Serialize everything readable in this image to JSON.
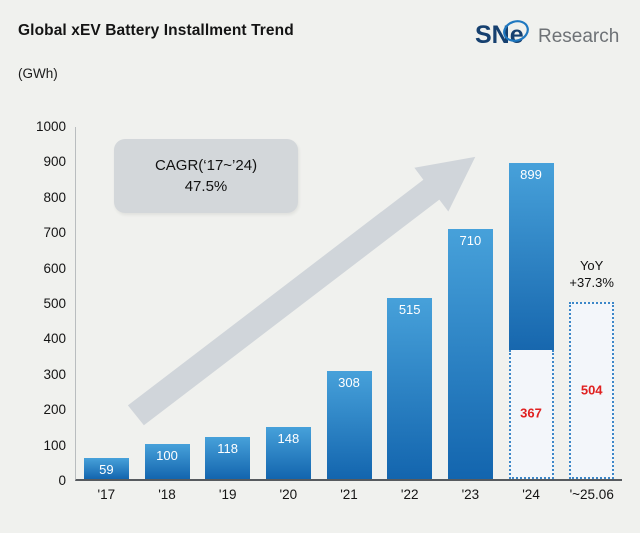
{
  "header": {
    "title": "Global xEV Battery Installment Trend",
    "unit": "(GWh)",
    "logo": {
      "mark": "SNe",
      "text": "Research"
    }
  },
  "annotations": {
    "cagr_line1": "CAGR(‘17~’24)",
    "cagr_line2": "47.5%",
    "yoy_line1": "YoY",
    "yoy_line2": "+37.3%"
  },
  "colors": {
    "background": "#f0f1ee",
    "bar_gradient_top": "#47a1da",
    "bar_gradient_bottom": "#1365ae",
    "dashed_border": "#3c87c8",
    "dashed_fill": "#f3f6fa",
    "value_label_white": "#ffffff",
    "value_label_red": "#e02121",
    "arrow": "#cdd3d8",
    "cagr_box": "#d3d7da",
    "logo_navy": "#16406f",
    "logo_swoosh": "#1f78c0",
    "logo_gray": "#6e7276"
  },
  "chart_data": {
    "type": "bar",
    "title": "Global xEV Battery Installment Trend",
    "ylabel": "(GWh)",
    "ylim": [
      0,
      1000
    ],
    "yticks": [
      0,
      100,
      200,
      300,
      400,
      500,
      600,
      700,
      800,
      900,
      1000
    ],
    "grid": false,
    "legend_position": "none",
    "categories": [
      "'17",
      "'18",
      "'19",
      "'20",
      "'21",
      "'22",
      "'23",
      "'24",
      "'~25.06"
    ],
    "values": [
      59,
      100,
      118,
      148,
      308,
      515,
      710,
      899,
      504
    ],
    "bars": [
      {
        "category": "'17",
        "value": 59,
        "style": "solid",
        "value_label": "59"
      },
      {
        "category": "'18",
        "value": 100,
        "style": "solid",
        "value_label": "100"
      },
      {
        "category": "'19",
        "value": 118,
        "style": "solid",
        "value_label": "118"
      },
      {
        "category": "'20",
        "value": 148,
        "style": "solid",
        "value_label": "148"
      },
      {
        "category": "'21",
        "value": 308,
        "style": "solid",
        "value_label": "308"
      },
      {
        "category": "'22",
        "value": 515,
        "style": "solid",
        "value_label": "515"
      },
      {
        "category": "'23",
        "value": 710,
        "style": "solid",
        "value_label": "710"
      },
      {
        "category": "'24",
        "value": 899,
        "style": "split",
        "value_label": "899",
        "split_value": 367,
        "split_label": "367"
      },
      {
        "category": "'~25.06",
        "value": 504,
        "style": "dashed",
        "value_label": "504"
      }
    ],
    "annotations": {
      "cagr": "CAGR(‘17~’24) 47.5%",
      "yoy": "YoY +37.3%"
    }
  }
}
